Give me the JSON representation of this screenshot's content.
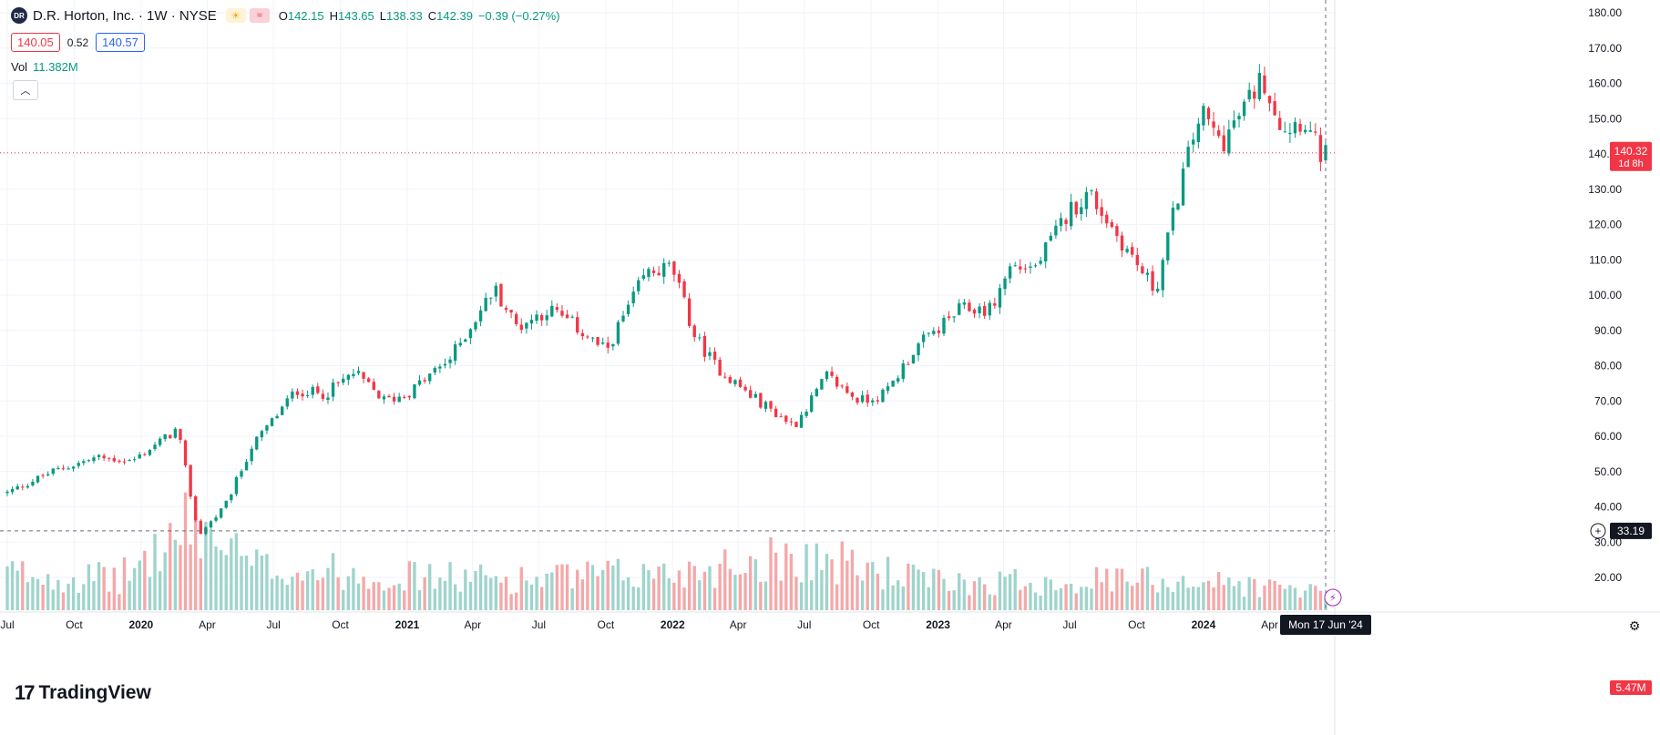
{
  "header": {
    "logo_text": "DR",
    "symbol_title": "D.R. Horton, Inc. · 1W · NYSE",
    "sun_icon": "sun-icon",
    "wave_icon": "approx-icon",
    "ohlc": [
      {
        "k": "O",
        "v": "142.15"
      },
      {
        "k": "H",
        "v": "143.65"
      },
      {
        "k": "L",
        "v": "138.33"
      },
      {
        "k": "C",
        "v": "142.39"
      },
      {
        "k": "",
        "v": "−0.39 (−0.27%)"
      }
    ],
    "bid": "140.05",
    "spread": "0.52",
    "ask": "140.57",
    "vol_label": "Vol",
    "vol_value": "11.382M",
    "collapse_icon": "chevron-up-icon"
  },
  "branding": {
    "logo_mark": "17",
    "logo_text": "TradingView"
  },
  "colors": {
    "up": "#089981",
    "down": "#f23645",
    "up_vol": "#9fd4cc",
    "down_vol": "#f4a8a9",
    "grid": "#f0f3fa",
    "axis_text": "#131722"
  },
  "chart_data": {
    "type": "candlestick",
    "title": "D.R. Horton, Inc. · 1W · NYSE",
    "price_axis": {
      "min": 20,
      "max": 180,
      "ticks": [
        "180.00",
        "170.00",
        "160.00",
        "150.00",
        "140.00",
        "130.00",
        "120.00",
        "110.00",
        "100.00",
        "90.00",
        "80.00",
        "70.00",
        "60.00",
        "50.00",
        "40.00",
        "30.00",
        "20.00"
      ]
    },
    "time_axis": {
      "start": "2019-07-01",
      "end": "2024-06-17",
      "ticks": [
        {
          "label": "Jul",
          "date": "2019-07-01"
        },
        {
          "label": "Oct",
          "date": "2019-10-01"
        },
        {
          "label": "2020",
          "date": "2020-01-01"
        },
        {
          "label": "Apr",
          "date": "2020-04-01"
        },
        {
          "label": "Jul",
          "date": "2020-07-01"
        },
        {
          "label": "Oct",
          "date": "2020-10-01"
        },
        {
          "label": "2021",
          "date": "2021-01-01"
        },
        {
          "label": "Apr",
          "date": "2021-04-01"
        },
        {
          "label": "Jul",
          "date": "2021-07-01"
        },
        {
          "label": "Oct",
          "date": "2021-10-01"
        },
        {
          "label": "2022",
          "date": "2022-01-01"
        },
        {
          "label": "Apr",
          "date": "2022-04-01"
        },
        {
          "label": "Jul",
          "date": "2022-07-01"
        },
        {
          "label": "Oct",
          "date": "2022-10-01"
        },
        {
          "label": "2023",
          "date": "2023-01-01"
        },
        {
          "label": "Apr",
          "date": "2023-04-01"
        },
        {
          "label": "Jul",
          "date": "2023-07-01"
        },
        {
          "label": "Oct",
          "date": "2023-10-01"
        },
        {
          "label": "2024",
          "date": "2024-01-01"
        },
        {
          "label": "Apr",
          "date": "2024-04-01"
        }
      ]
    },
    "close_anchors": [
      [
        "2019-07-01",
        44
      ],
      [
        "2019-09-01",
        50
      ],
      [
        "2019-11-01",
        54
      ],
      [
        "2019-12-20",
        53
      ],
      [
        "2020-02-20",
        62
      ],
      [
        "2020-03-20",
        32
      ],
      [
        "2020-04-25",
        40
      ],
      [
        "2020-06-01",
        57
      ],
      [
        "2020-08-01",
        73
      ],
      [
        "2020-09-10",
        72
      ],
      [
        "2020-10-20",
        78
      ],
      [
        "2020-12-01",
        70
      ],
      [
        "2021-01-01",
        72
      ],
      [
        "2021-03-01",
        82
      ],
      [
        "2021-05-01",
        102
      ],
      [
        "2021-06-01",
        91
      ],
      [
        "2021-07-15",
        96
      ],
      [
        "2021-08-15",
        92
      ],
      [
        "2021-10-01",
        84
      ],
      [
        "2021-11-25",
        106
      ],
      [
        "2021-12-31",
        108
      ],
      [
        "2022-02-01",
        88
      ],
      [
        "2022-03-01",
        80
      ],
      [
        "2022-04-15",
        72
      ],
      [
        "2022-06-17",
        63
      ],
      [
        "2022-08-01",
        77
      ],
      [
        "2022-09-15",
        70
      ],
      [
        "2022-10-20",
        72
      ],
      [
        "2022-12-01",
        85
      ],
      [
        "2023-02-01",
        96
      ],
      [
        "2023-03-15",
        96
      ],
      [
        "2023-04-10",
        108
      ],
      [
        "2023-05-15",
        108
      ],
      [
        "2023-07-01",
        124
      ],
      [
        "2023-07-28",
        129
      ],
      [
        "2023-09-01",
        118
      ],
      [
        "2023-10-27",
        101
      ],
      [
        "2023-12-01",
        132
      ],
      [
        "2023-12-28",
        152
      ],
      [
        "2024-01-26",
        143
      ],
      [
        "2024-02-23",
        152
      ],
      [
        "2024-03-22",
        162
      ],
      [
        "2024-04-19",
        147
      ],
      [
        "2024-05-17",
        150
      ],
      [
        "2024-06-10",
        140
      ]
    ],
    "volume_anchors": [
      [
        "2019-07-01",
        12
      ],
      [
        "2019-12-01",
        10
      ],
      [
        "2020-03-15",
        28
      ],
      [
        "2020-06-01",
        14
      ],
      [
        "2021-01-01",
        11
      ],
      [
        "2021-06-01",
        10
      ],
      [
        "2022-01-01",
        12
      ],
      [
        "2022-06-17",
        18
      ],
      [
        "2023-01-01",
        9
      ],
      [
        "2023-12-01",
        10
      ],
      [
        "2024-06-10",
        6
      ]
    ],
    "current_price": "140.32",
    "countdown": "1d 8h",
    "crosshair_value": "33.19",
    "volume_label": "5.47M",
    "crosshair_date": "Mon 17 Jun '24"
  }
}
